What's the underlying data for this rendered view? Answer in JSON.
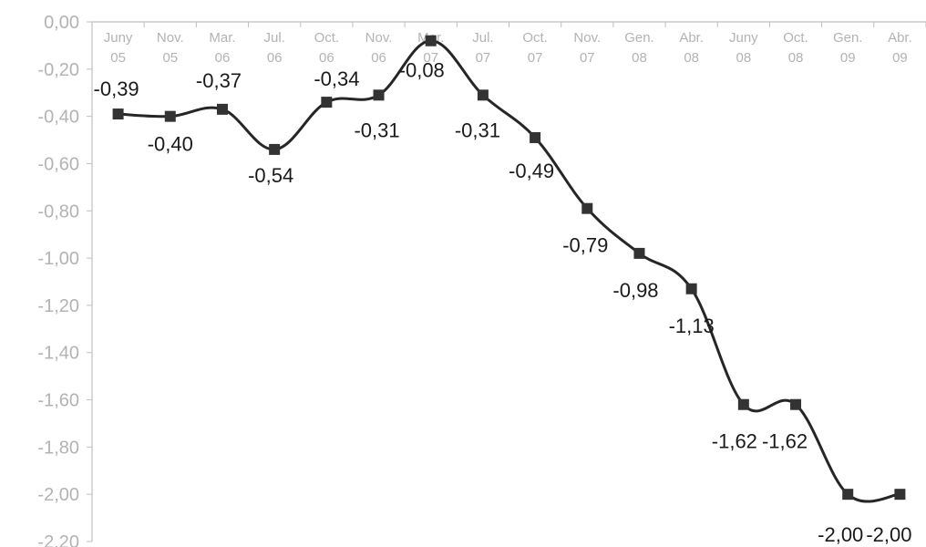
{
  "chart_data": {
    "type": "line",
    "title": "",
    "xlabel": "",
    "ylabel": "",
    "ylim": [
      -2.2,
      0.0
    ],
    "y_step": 0.2,
    "x_axis_position": "top",
    "grid": false,
    "y_tick_labels": [
      "0,00",
      "-0,20",
      "-0,40",
      "-0,60",
      "-0,80",
      "-1,00",
      "-1,20",
      "-1,40",
      "-1,60",
      "-1,80",
      "-2,00",
      "-2,20"
    ],
    "categories": [
      [
        "Juny",
        "05"
      ],
      [
        "Nov.",
        "05"
      ],
      [
        "Mar.",
        "06"
      ],
      [
        "Jul.",
        "06"
      ],
      [
        "Oct.",
        "06"
      ],
      [
        "Nov.",
        "06"
      ],
      [
        "Mar.",
        "07"
      ],
      [
        "Jul.",
        "07"
      ],
      [
        "Oct.",
        "07"
      ],
      [
        "Nov.",
        "07"
      ],
      [
        "Gen.",
        "08"
      ],
      [
        "Abr.",
        "08"
      ],
      [
        "Juny",
        "08"
      ],
      [
        "Oct.",
        "08"
      ],
      [
        "Gen.",
        "09"
      ],
      [
        "Abr.",
        "09"
      ]
    ],
    "values": [
      -0.39,
      -0.4,
      -0.37,
      -0.54,
      -0.34,
      -0.31,
      -0.08,
      -0.31,
      -0.49,
      -0.79,
      -0.98,
      -1.13,
      -1.62,
      -1.62,
      -2.0,
      -2.0
    ],
    "data_labels": [
      "-0,39",
      "-0,40",
      "-0,37",
      "-0,54",
      "-0,34",
      "-0,31",
      "-0,08",
      "-0,31",
      "-0,49",
      "-0,79",
      "-0,98",
      "-1,13",
      "-1,62",
      "-1,62",
      "-2,00",
      "-2,00"
    ],
    "colors": {
      "line": "#262626",
      "marker": "#333333",
      "axis": "#bfbfbf",
      "tick_text": "#b3b3b3",
      "label_text": "#1a1a1a"
    },
    "marker": "square",
    "smooth": true
  }
}
